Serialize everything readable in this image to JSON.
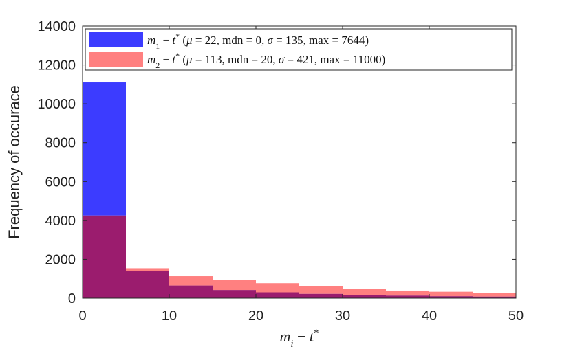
{
  "chart_data": {
    "type": "bar",
    "subtype": "overlapping-histogram",
    "xlabel": "m_i − t*",
    "ylabel": "Frequency of occurace",
    "xlim": [
      0,
      50
    ],
    "ylim": [
      0,
      14000
    ],
    "xticks": [
      0,
      10,
      20,
      30,
      40,
      50
    ],
    "yticks": [
      0,
      2000,
      4000,
      6000,
      8000,
      10000,
      12000,
      14000
    ],
    "bin_edges": [
      0,
      5,
      10,
      15,
      20,
      25,
      30,
      35,
      40,
      45,
      50
    ],
    "grid": false,
    "legend_position": "top",
    "series": [
      {
        "name": "m₁ − t* (μ = 22, mdn = 0, σ = 135, max = 7644)",
        "color": "#2b2bff",
        "values": [
          11100,
          1380,
          650,
          420,
          300,
          220,
          170,
          130,
          100,
          80
        ]
      },
      {
        "name": "m₂ − t* (μ = 113, mdn = 20, σ = 421, max = 11000)",
        "color": "#ff7575",
        "values": [
          4250,
          1540,
          1130,
          920,
          770,
          610,
          490,
          390,
          330,
          280
        ]
      }
    ],
    "overlap_color": "#9b1c6e"
  }
}
